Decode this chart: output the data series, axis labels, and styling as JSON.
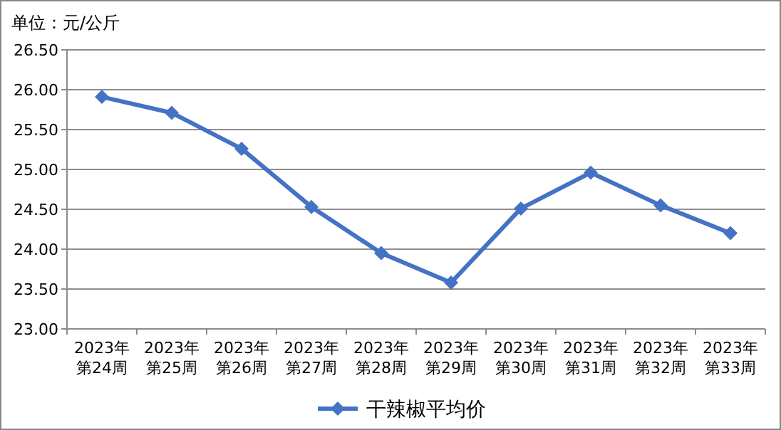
{
  "chart_data": {
    "type": "line",
    "ylabel": "单位：元/公斤",
    "categories": [
      "2023年第24周",
      "2023年第25周",
      "2023年第26周",
      "2023年第27周",
      "2023年第28周",
      "2023年第29周",
      "2023年第30周",
      "2023年第31周",
      "2023年第32周",
      "2023年第33周"
    ],
    "series": [
      {
        "name": "干辣椒平均价",
        "color": "#4472c4",
        "values": [
          25.91,
          25.71,
          25.26,
          24.53,
          23.95,
          23.58,
          24.51,
          24.96,
          24.55,
          24.2
        ]
      }
    ],
    "ylim": [
      23,
      26.5
    ],
    "yticks": [
      {
        "value": 23,
        "label": "23.00"
      },
      {
        "value": 23.5,
        "label": "23.50"
      },
      {
        "value": 24,
        "label": "24.00"
      },
      {
        "value": 24.5,
        "label": "24.50"
      },
      {
        "value": 25,
        "label": "25.00"
      },
      {
        "value": 25.5,
        "label": "25.50"
      },
      {
        "value": 26,
        "label": "26.00"
      },
      {
        "value": 26.5,
        "label": "26.50"
      }
    ],
    "grid": "y",
    "legend": "bottom",
    "marker": "diamond",
    "line_style": "solid"
  }
}
